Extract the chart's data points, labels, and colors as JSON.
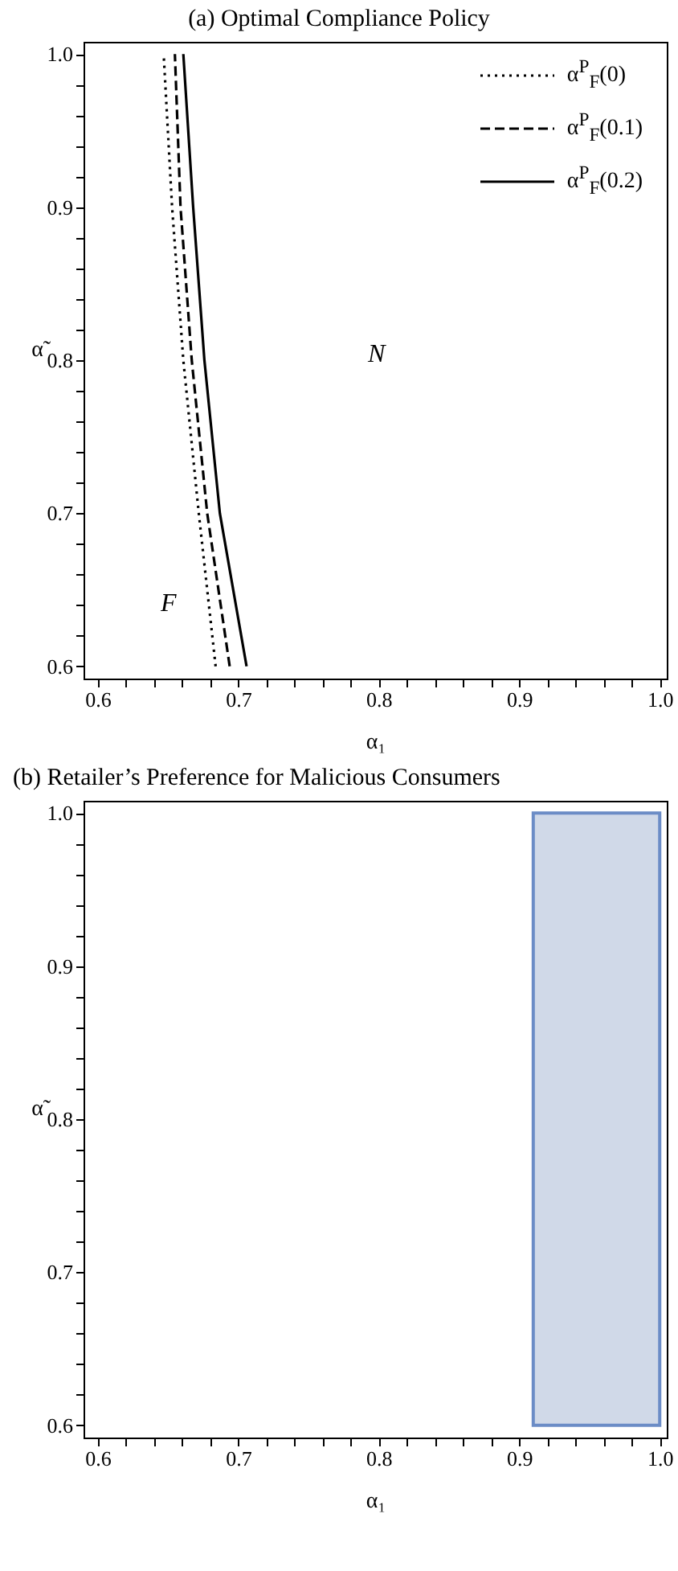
{
  "chart_data": [
    {
      "type": "line",
      "title": "(a) Optimal Compliance Policy",
      "xlabel": "α₁",
      "ylabel": "α̃",
      "legend": "top right",
      "grid": false,
      "xlim": [
        0.59,
        1.005
      ],
      "ylim": [
        0.592,
        1.008
      ],
      "xticks": [
        0.6,
        {
          "value": 0.62,
          "label": null
        },
        {
          "value": 0.64,
          "label": null
        },
        {
          "value": 0.66,
          "label": null
        },
        {
          "value": 0.68,
          "label": null
        },
        0.7,
        {
          "value": 0.72,
          "label": null
        },
        {
          "value": 0.74,
          "label": null
        },
        {
          "value": 0.76,
          "label": null
        },
        {
          "value": 0.78,
          "label": null
        },
        0.8,
        {
          "value": 0.82,
          "label": null
        },
        {
          "value": 0.84,
          "label": null
        },
        {
          "value": 0.86,
          "label": null
        },
        {
          "value": 0.88,
          "label": null
        },
        0.9,
        {
          "value": 0.92,
          "label": null
        },
        {
          "value": 0.94,
          "label": null
        },
        {
          "value": 0.96,
          "label": null
        },
        {
          "value": 0.98,
          "label": null
        },
        {
          "value": 1.0,
          "label": "1.0"
        }
      ],
      "yticks": [
        0.6,
        {
          "value": 0.62,
          "label": null
        },
        {
          "value": 0.64,
          "label": null
        },
        {
          "value": 0.66,
          "label": null
        },
        {
          "value": 0.68,
          "label": null
        },
        0.7,
        {
          "value": 0.72,
          "label": null
        },
        {
          "value": 0.74,
          "label": null
        },
        {
          "value": 0.76,
          "label": null
        },
        {
          "value": 0.78,
          "label": null
        },
        0.8,
        {
          "value": 0.82,
          "label": null
        },
        {
          "value": 0.84,
          "label": null
        },
        {
          "value": 0.86,
          "label": null
        },
        {
          "value": 0.88,
          "label": null
        },
        0.9,
        {
          "value": 0.92,
          "label": null
        },
        {
          "value": 0.94,
          "label": null
        },
        {
          "value": 0.96,
          "label": null
        },
        {
          "value": 0.98,
          "label": null
        },
        {
          "value": 1.0,
          "label": "1.0"
        }
      ],
      "series": [
        {
          "name": "α$^{P}$$_{F}$(0)",
          "color": "#000000",
          "line_style": "dotted",
          "x": [
            0.684,
            0.672,
            0.661,
            0.653,
            0.647
          ],
          "values": [
            0.6,
            0.7,
            0.8,
            0.9,
            1.0
          ]
        },
        {
          "name": "α$^{P}$$_{F}$(0.1)",
          "color": "#000000",
          "line_style": "dashed",
          "x": [
            0.694,
            0.678,
            0.667,
            0.659,
            0.655
          ],
          "values": [
            0.6,
            0.7,
            0.8,
            0.9,
            1.0
          ]
        },
        {
          "name": "α$^{P}$$_{F}$(0.2)",
          "color": "#000000",
          "line_style": "solid",
          "x": [
            0.706,
            0.687,
            0.676,
            0.668,
            0.661
          ],
          "values": [
            0.6,
            0.7,
            0.8,
            0.9,
            1.0
          ]
        }
      ],
      "annotations": [
        "F",
        "N"
      ]
    },
    {
      "type": "line",
      "title": "(b) Retailer’s Preference for Malicious Consumers",
      "xlabel": "α₁",
      "ylabel": "α̃",
      "xlim": [
        0.59,
        1.005
      ],
      "ylim": [
        0.592,
        1.008
      ],
      "xticks": [
        0.6,
        {
          "value": 0.62,
          "label": null
        },
        {
          "value": 0.64,
          "label": null
        },
        {
          "value": 0.66,
          "label": null
        },
        {
          "value": 0.68,
          "label": null
        },
        0.7,
        {
          "value": 0.72,
          "label": null
        },
        {
          "value": 0.74,
          "label": null
        },
        {
          "value": 0.76,
          "label": null
        },
        {
          "value": 0.78,
          "label": null
        },
        0.8,
        {
          "value": 0.82,
          "label": null
        },
        {
          "value": 0.84,
          "label": null
        },
        {
          "value": 0.86,
          "label": null
        },
        {
          "value": 0.88,
          "label": null
        },
        0.9,
        {
          "value": 0.92,
          "label": null
        },
        {
          "value": 0.94,
          "label": null
        },
        {
          "value": 0.96,
          "label": null
        },
        {
          "value": 0.98,
          "label": null
        },
        {
          "value": 1.0,
          "label": "1.0"
        }
      ],
      "yticks": [
        0.6,
        {
          "value": 0.62,
          "label": null
        },
        {
          "value": 0.64,
          "label": null
        },
        {
          "value": 0.66,
          "label": null
        },
        {
          "value": 0.68,
          "label": null
        },
        0.7,
        {
          "value": 0.72,
          "label": null
        },
        {
          "value": 0.74,
          "label": null
        },
        {
          "value": 0.76,
          "label": null
        },
        {
          "value": 0.78,
          "label": null
        },
        0.8,
        {
          "value": 0.82,
          "label": null
        },
        {
          "value": 0.84,
          "label": null
        },
        {
          "value": 0.86,
          "label": null
        },
        {
          "value": 0.88,
          "label": null
        },
        0.9,
        {
          "value": 0.92,
          "label": null
        },
        {
          "value": 0.94,
          "label": null
        },
        {
          "value": 0.96,
          "label": null
        },
        {
          "value": 0.98,
          "label": null
        },
        {
          "value": 1.0,
          "label": "1.0"
        }
      ],
      "bands": [
        {
          "axis": "x",
          "from": 0.91,
          "to": 1.0,
          "color": "#d0d9e8"
        }
      ]
    }
  ]
}
